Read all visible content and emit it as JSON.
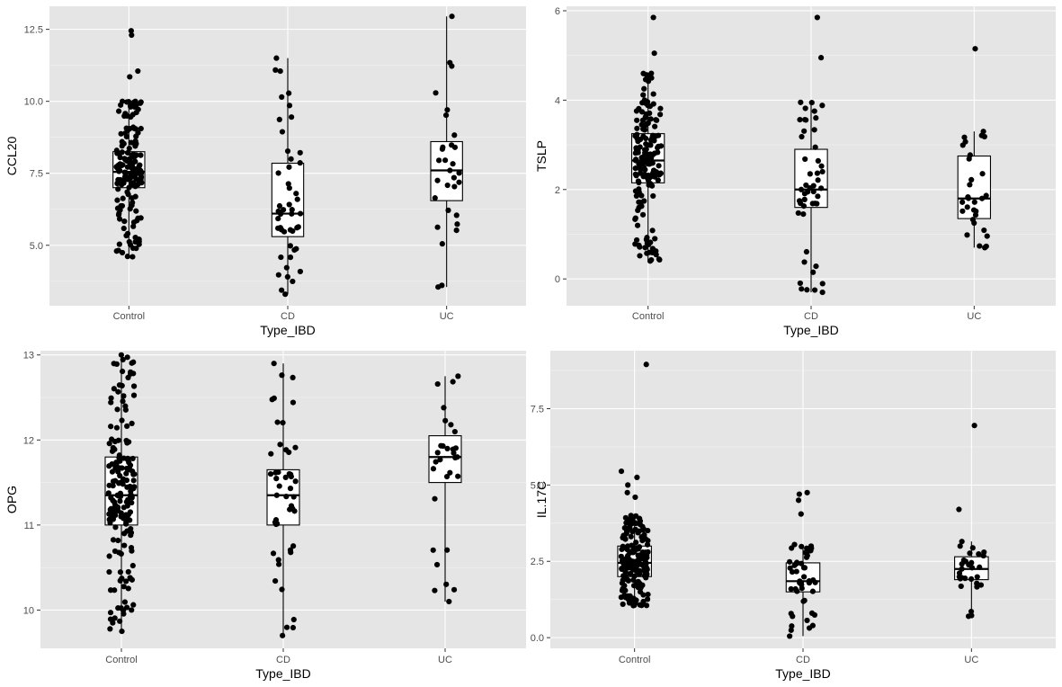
{
  "chart_data": [
    {
      "type": "box",
      "title": "",
      "xlabel": "Type_IBD",
      "ylabel": "CCL20",
      "categories": [
        "Control",
        "CD",
        "UC"
      ],
      "ylim": [
        2.9,
        13.3
      ],
      "yticks": [
        5.0,
        7.5,
        10.0,
        12.5
      ],
      "ytick_labels": [
        "5.0",
        "7.5",
        "10.0",
        "12.5"
      ],
      "grid": true,
      "boxes": [
        {
          "category": "Control",
          "min": 4.6,
          "q1": 7.0,
          "median": 7.55,
          "q3": 8.25,
          "max": 10.0,
          "n": 170,
          "outliers": [
            12.45,
            12.3,
            11.05,
            10.85
          ]
        },
        {
          "category": "CD",
          "min": 3.3,
          "q1": 5.3,
          "median": 6.1,
          "q3": 7.85,
          "max": 11.5,
          "n": 45,
          "outliers": []
        },
        {
          "category": "UC",
          "min": 3.55,
          "q1": 6.55,
          "median": 7.6,
          "q3": 8.6,
          "max": 12.95,
          "n": 27,
          "outliers": []
        }
      ]
    },
    {
      "type": "box",
      "title": "",
      "xlabel": "Type_IBD",
      "ylabel": "TSLP",
      "categories": [
        "Control",
        "CD",
        "UC"
      ],
      "ylim": [
        -0.6,
        6.1
      ],
      "yticks": [
        0,
        2,
        4,
        6
      ],
      "ytick_labels": [
        "0",
        "2",
        "4",
        "6"
      ],
      "grid": true,
      "boxes": [
        {
          "category": "Control",
          "min": 0.4,
          "q1": 2.15,
          "median": 2.65,
          "q3": 3.25,
          "max": 4.6,
          "n": 170,
          "outliers": [
            5.85,
            5.05
          ]
        },
        {
          "category": "CD",
          "min": -0.3,
          "q1": 1.6,
          "median": 2.0,
          "q3": 2.9,
          "max": 3.95,
          "n": 45,
          "outliers": [
            5.85,
            4.95
          ]
        },
        {
          "category": "UC",
          "min": 0.7,
          "q1": 1.35,
          "median": 1.8,
          "q3": 2.75,
          "max": 3.3,
          "n": 27,
          "outliers": [
            5.15
          ]
        }
      ]
    },
    {
      "type": "box",
      "title": "",
      "xlabel": "Type_IBD",
      "ylabel": "OPG",
      "categories": [
        "Control",
        "CD",
        "UC"
      ],
      "ylim": [
        9.55,
        13.05
      ],
      "yticks": [
        10,
        11,
        12,
        13
      ],
      "ytick_labels": [
        "10",
        "11",
        "12",
        "13"
      ],
      "grid": true,
      "boxes": [
        {
          "category": "Control",
          "min": 9.75,
          "q1": 11.0,
          "median": 11.35,
          "q3": 11.8,
          "max": 13.0,
          "n": 170,
          "outliers": []
        },
        {
          "category": "CD",
          "min": 9.7,
          "q1": 11.0,
          "median": 11.35,
          "q3": 11.65,
          "max": 12.9,
          "n": 45,
          "outliers": []
        },
        {
          "category": "UC",
          "min": 10.1,
          "q1": 11.5,
          "median": 11.8,
          "q3": 12.05,
          "max": 12.75,
          "n": 27,
          "outliers": []
        }
      ]
    },
    {
      "type": "box",
      "title": "",
      "xlabel": "Type_IBD",
      "ylabel": "IL.17C",
      "categories": [
        "Control",
        "CD",
        "UC"
      ],
      "ylim": [
        -0.35,
        9.4
      ],
      "yticks": [
        0.0,
        2.5,
        5.0,
        7.5
      ],
      "ytick_labels": [
        "0.0",
        "2.5",
        "5.0",
        "7.5"
      ],
      "grid": true,
      "boxes": [
        {
          "category": "Control",
          "min": 1.05,
          "q1": 2.0,
          "median": 2.45,
          "q3": 3.0,
          "max": 4.0,
          "n": 170,
          "outliers": [
            8.95,
            5.45,
            5.25,
            5.0,
            4.75,
            4.6
          ]
        },
        {
          "category": "CD",
          "min": 0.05,
          "q1": 1.5,
          "median": 1.85,
          "q3": 2.45,
          "max": 3.05,
          "n": 45,
          "outliers": [
            4.75,
            4.7,
            4.5,
            4.05
          ]
        },
        {
          "category": "UC",
          "min": 0.7,
          "q1": 1.9,
          "median": 2.25,
          "q3": 2.65,
          "max": 3.15,
          "n": 27,
          "outliers": [
            6.95,
            4.2
          ]
        }
      ]
    }
  ]
}
